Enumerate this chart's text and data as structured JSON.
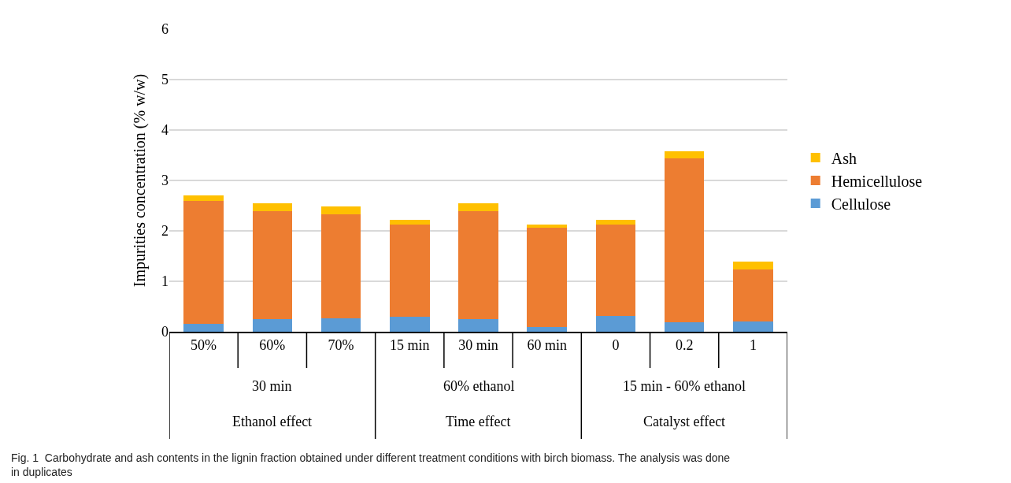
{
  "chart_data": {
    "type": "bar",
    "stacked": true,
    "categories": [
      "50%",
      "60%",
      "70%",
      "15 min",
      "30 min",
      "60 min",
      "0",
      "0.2",
      "1"
    ],
    "series": [
      {
        "name": "Cellulose",
        "color": "#5b9bd5",
        "values": [
          0.16,
          0.25,
          0.26,
          0.3,
          0.25,
          0.1,
          0.32,
          0.19,
          0.2
        ]
      },
      {
        "name": "Hemicellulose",
        "color": "#ed7d31",
        "values": [
          2.44,
          2.14,
          2.07,
          1.82,
          2.14,
          1.96,
          1.81,
          3.25,
          1.03
        ]
      },
      {
        "name": "Ash",
        "color": "#ffc000",
        "values": [
          0.1,
          0.16,
          0.16,
          0.1,
          0.16,
          0.07,
          0.09,
          0.14,
          0.16
        ]
      }
    ],
    "ylabel": "Impurities concentration (% w/w)",
    "ylim": [
      0,
      6
    ],
    "yticks": [
      0,
      1,
      2,
      3,
      4,
      5,
      6
    ],
    "grid": "y",
    "legend": "right",
    "annotations": [
      "30 min",
      "60% ethanol",
      "15 min - 60% ethanol",
      "Ethanol effect",
      "Time effect",
      "Catalyst effect",
      "Fig. 1  Carbohydrate and ash contents in the lignin fraction obtained under different treatment conditions with birch biomass. The analysis was done in duplicates"
    ]
  }
}
